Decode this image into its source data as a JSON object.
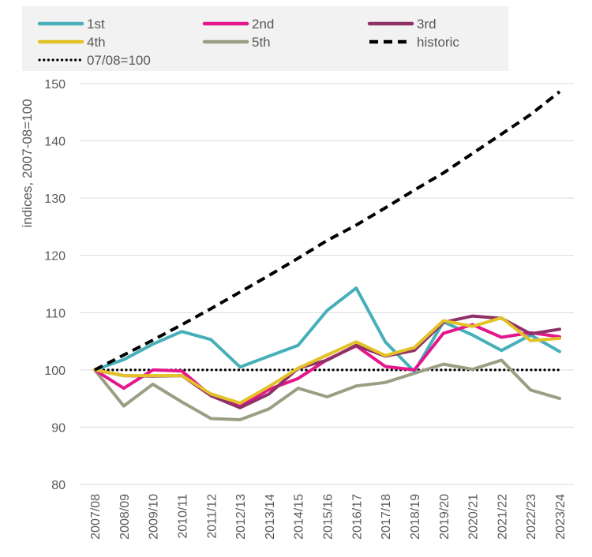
{
  "chart_data": {
    "type": "line",
    "ylabel": "indices, 2007-08=100",
    "ylim": [
      80,
      150
    ],
    "yticks": [
      80,
      90,
      100,
      110,
      120,
      130,
      140,
      150
    ],
    "legend_position": "top",
    "grid": "horizontal",
    "categories": [
      "2007/08",
      "2008/09",
      "2009/10",
      "2010/11",
      "2011/12",
      "2012/13",
      "2013/14",
      "2014/15",
      "2015/16",
      "2016/17",
      "2017/18",
      "2018/19",
      "2019/20",
      "2020/21",
      "2021/22",
      "2022/23",
      "2023/24"
    ],
    "series": [
      {
        "name": "1st",
        "color": "#46AFB9",
        "style": "solid",
        "values": [
          100,
          101.8,
          104.5,
          106.7,
          105.3,
          100.5,
          102.4,
          104.3,
          110.4,
          114.3,
          104.9,
          99.7,
          108.4,
          106.1,
          103.4,
          106.1,
          103.2
        ]
      },
      {
        "name": "2nd",
        "color": "#E4168C",
        "style": "solid",
        "values": [
          100,
          96.8,
          100.0,
          99.8,
          95.5,
          93.6,
          96.6,
          98.5,
          101.8,
          104.2,
          100.6,
          100.0,
          106.4,
          107.9,
          105.7,
          106.5,
          105.8
        ]
      },
      {
        "name": "3rd",
        "color": "#8E3167",
        "style": "solid",
        "values": [
          100,
          99.0,
          98.9,
          99.0,
          95.5,
          93.4,
          95.8,
          100.3,
          101.7,
          104.3,
          102.4,
          103.4,
          108.3,
          109.4,
          109.0,
          106.3,
          107.1
        ]
      },
      {
        "name": "4th",
        "color": "#E3C228",
        "style": "solid",
        "values": [
          100,
          99.0,
          99.0,
          99.0,
          95.8,
          94.2,
          97.1,
          100.3,
          102.6,
          104.9,
          102.5,
          103.9,
          108.6,
          107.6,
          109.1,
          105.1,
          105.5
        ]
      },
      {
        "name": "5th",
        "color": "#9C9E83",
        "style": "solid",
        "values": [
          100,
          93.7,
          97.5,
          94.4,
          91.5,
          91.3,
          93.2,
          96.8,
          95.3,
          97.2,
          97.8,
          99.4,
          101.0,
          100.1,
          101.7,
          96.5,
          95.0
        ]
      },
      {
        "name": "historic",
        "color": "#000000",
        "style": "dashed",
        "values": [
          100,
          102.6,
          105.2,
          107.9,
          110.7,
          113.6,
          116.5,
          119.5,
          122.6,
          125.3,
          128.3,
          131.4,
          134.4,
          137.8,
          141.2,
          144.6,
          148.6
        ]
      },
      {
        "name": "07/08=100",
        "color": "#000000",
        "style": "dotted",
        "values": [
          100,
          100,
          100,
          100,
          100,
          100,
          100,
          100,
          100,
          100,
          100,
          100,
          100,
          100,
          100,
          100,
          100
        ]
      }
    ]
  }
}
